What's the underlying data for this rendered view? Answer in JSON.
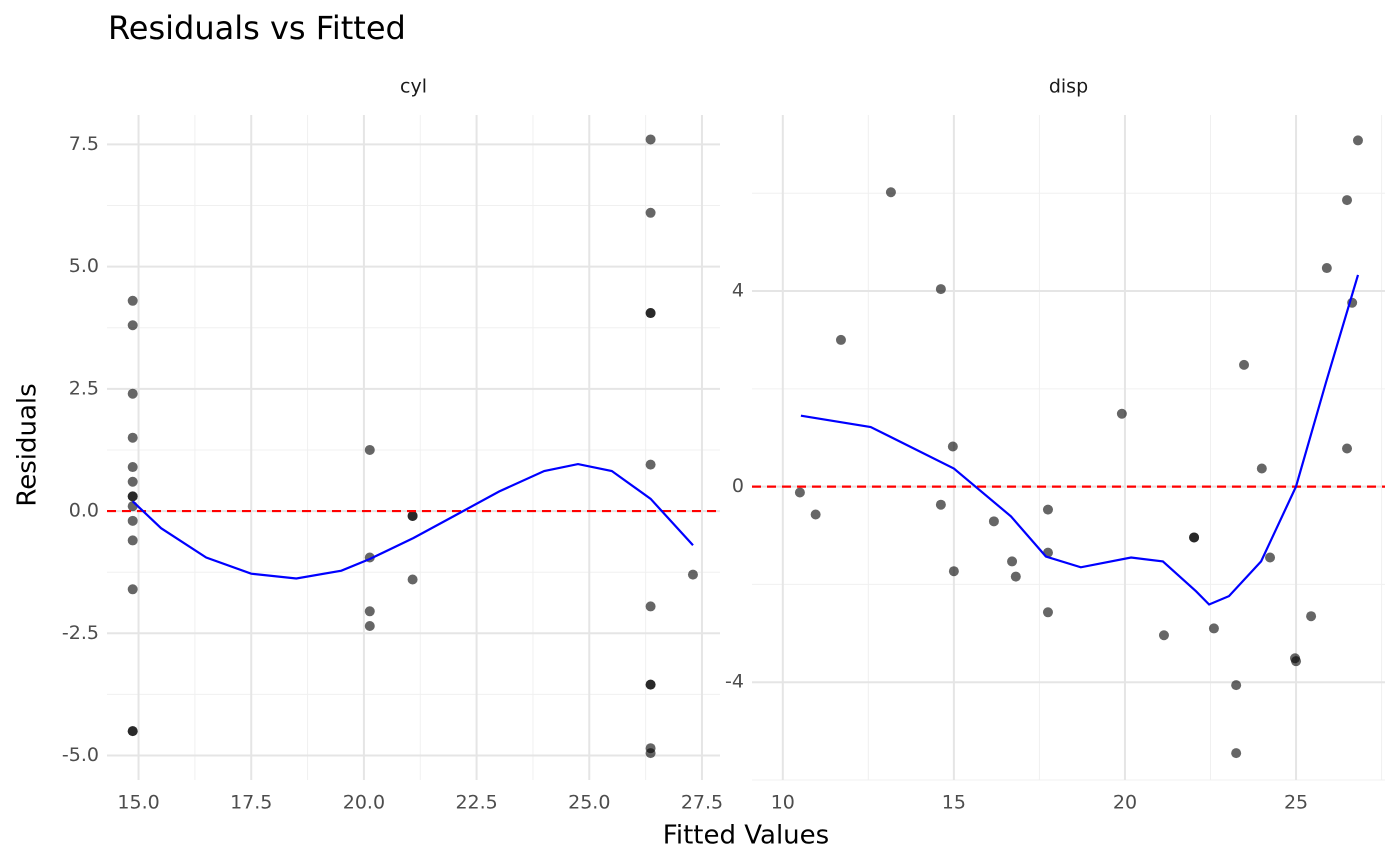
{
  "chart_data": {
    "title": "Residuals vs Fitted",
    "xlabel": "Fitted Values",
    "ylabel": "Residuals",
    "panels": [
      {
        "type": "scatter",
        "title": "cyl",
        "xlim": [
          14.3,
          27.9
        ],
        "xticks": [
          {
            "value": 15,
            "label": "15.0"
          },
          17.5,
          {
            "value": 20,
            "label": "20.0"
          },
          22.5,
          {
            "value": 25,
            "label": "25.0"
          },
          27.5
        ],
        "xminor": [
          16.25,
          18.75,
          21.25,
          23.75,
          26.25
        ],
        "ylim": [
          -5.5,
          8.1
        ],
        "yticks": [
          {
            "value": -5,
            "label": "-5.0"
          },
          -2.5,
          {
            "value": 0,
            "label": "0.0"
          },
          2.5,
          {
            "value": 5,
            "label": "5.0"
          },
          7.5
        ],
        "yminor": [
          -3.75,
          -1.25,
          1.25,
          3.75,
          6.25
        ],
        "grid": true,
        "reference_line": {
          "value": 0,
          "color": "#ff0000"
        },
        "series": [
          {
            "kind": "points",
            "color": "#000000",
            "x": [
              14.87,
              14.87,
              14.87,
              14.87,
              14.87,
              14.87,
              14.87,
              14.87,
              14.87,
              14.87,
              14.87,
              14.87,
              14.87,
              14.87,
              20.13,
              20.13,
              20.13,
              20.13,
              21.08,
              21.08,
              21.08,
              26.36,
              26.36,
              26.36,
              26.36,
              26.36,
              26.36,
              26.36,
              26.36,
              26.36,
              26.36,
              27.3
            ],
            "values": [
              4.3,
              3.8,
              2.4,
              1.5,
              0.9,
              0.6,
              0.3,
              0.3,
              0.1,
              -0.2,
              -0.6,
              -1.6,
              -4.5,
              -4.5,
              1.25,
              -0.95,
              -2.05,
              -2.35,
              -0.1,
              -0.1,
              -1.4,
              7.6,
              6.1,
              4.05,
              4.05,
              0.95,
              -1.95,
              -3.55,
              -3.55,
              -4.85,
              -4.95,
              -1.3
            ]
          },
          {
            "kind": "smooth",
            "color": "#0000ff",
            "x": [
              14.87,
              15.5,
              16.5,
              17.5,
              18.5,
              19.5,
              20.13,
              21.1,
              22.0,
              23.0,
              24.0,
              24.75,
              25.5,
              26.36,
              27.3
            ],
            "values": [
              0.2,
              -0.35,
              -0.95,
              -1.28,
              -1.38,
              -1.22,
              -0.98,
              -0.55,
              -0.1,
              0.4,
              0.82,
              0.96,
              0.82,
              0.25,
              -0.7
            ]
          }
        ]
      },
      {
        "type": "scatter",
        "title": "disp",
        "xlim": [
          9.1,
          27.6
        ],
        "xticks": [
          10,
          15,
          20,
          25
        ],
        "xminor": [
          12.5,
          17.5,
          22.5,
          27.5
        ],
        "ylim": [
          -6.0,
          7.6
        ],
        "yticks": [
          -4,
          0,
          4
        ],
        "yminor": [
          -6,
          -2,
          2,
          6
        ],
        "grid": true,
        "reference_line": {
          "value": 0,
          "color": "#ff0000"
        },
        "series": [
          {
            "kind": "points",
            "color": "#000000",
            "x": [
              10.5,
              10.96,
              11.7,
              13.16,
              14.62,
              14.62,
              14.97,
              15.0,
              16.17,
              16.7,
              16.81,
              17.75,
              17.75,
              17.75,
              19.91,
              21.14,
              22.02,
              22.02,
              22.6,
              23.25,
              23.25,
              23.48,
              24.0,
              24.24,
              24.97,
              25.0,
              25.44,
              25.9,
              26.49,
              26.49,
              26.64,
              26.81
            ],
            "values": [
              -0.12,
              -0.57,
              3.0,
              6.02,
              4.04,
              -0.37,
              0.82,
              -1.73,
              -0.71,
              -1.53,
              -1.84,
              -0.47,
              -1.35,
              -2.57,
              1.49,
              -3.04,
              -1.04,
              -1.04,
              -2.9,
              -4.06,
              -5.45,
              2.49,
              0.37,
              -1.45,
              -3.51,
              -3.57,
              -2.65,
              4.47,
              0.78,
              5.86,
              3.76,
              7.08
            ]
          },
          {
            "kind": "smooth",
            "color": "#0000ff",
            "x": [
              10.53,
              12.57,
              15.0,
              16.67,
              17.69,
              18.71,
              20.18,
              21.11,
              22.08,
              22.46,
              23.04,
              23.98,
              25.0,
              25.88,
              26.81
            ],
            "values": [
              1.45,
              1.22,
              0.37,
              -0.61,
              -1.43,
              -1.65,
              -1.45,
              -1.53,
              -2.14,
              -2.41,
              -2.24,
              -1.53,
              0.0,
              2.14,
              4.33
            ]
          }
        ]
      }
    ]
  }
}
